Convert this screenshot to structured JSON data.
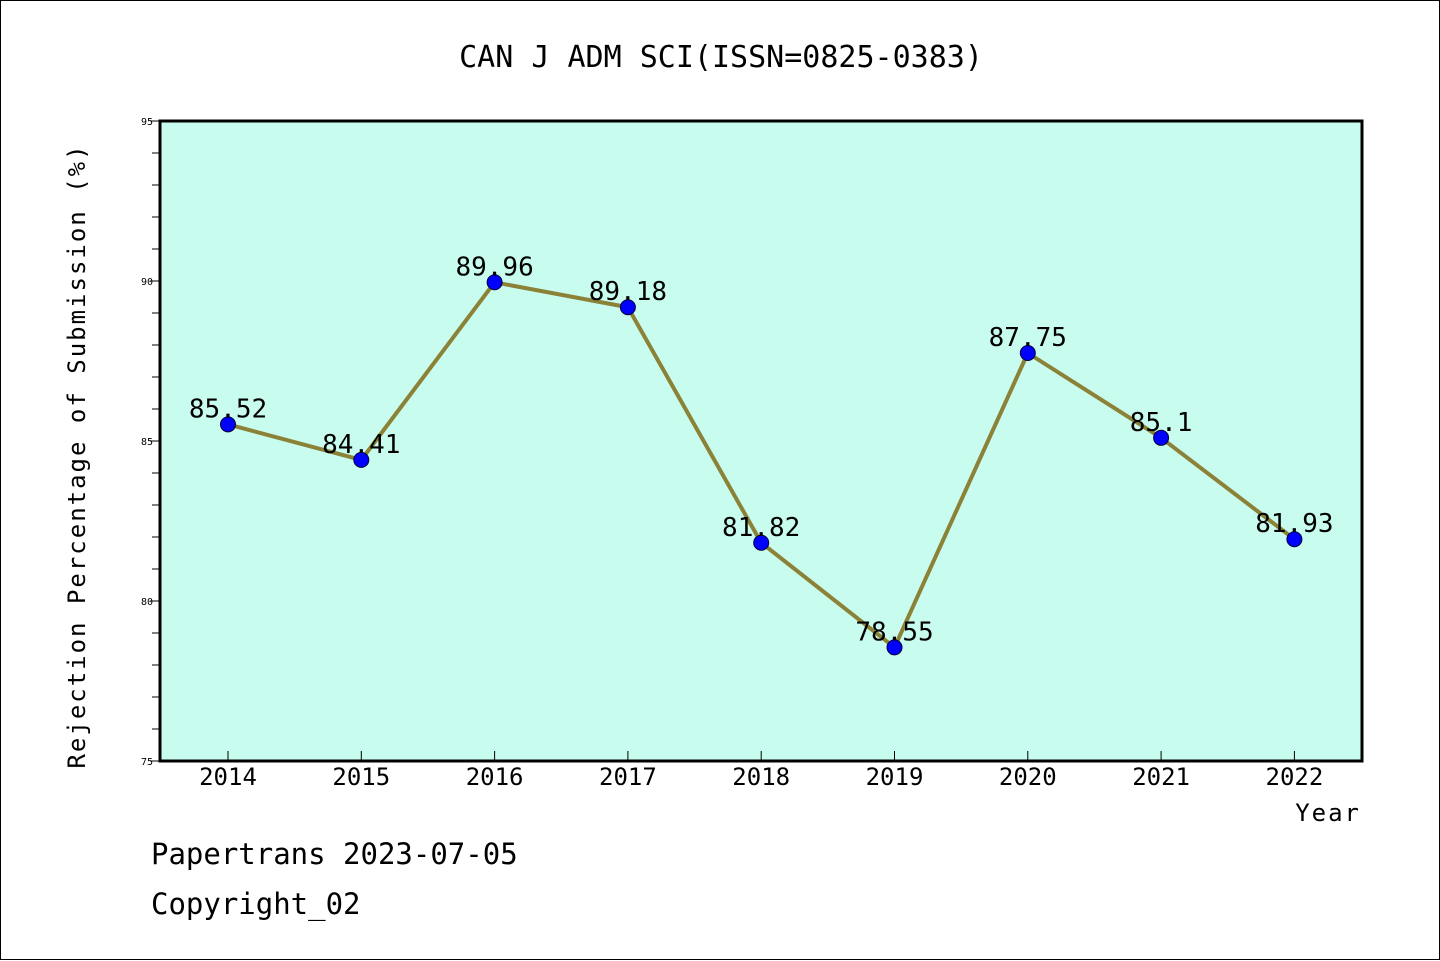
{
  "chart_data": {
    "type": "line",
    "title": "CAN J ADM SCI(ISSN=0825-0383)",
    "xlabel": "Year",
    "ylabel": "Rejection Percentage of Submission (%)",
    "x": [
      "2014",
      "2015",
      "2016",
      "2017",
      "2018",
      "2019",
      "2020",
      "2021",
      "2022"
    ],
    "values": [
      85.52,
      84.41,
      89.96,
      89.18,
      81.82,
      78.55,
      87.75,
      85.1,
      81.93
    ],
    "value_labels": [
      "85.52",
      "84.41",
      "89.96",
      "89.18",
      "81.82",
      "78.55",
      "87.75",
      "85.1",
      "81.93"
    ],
    "ylim": [
      75,
      95
    ],
    "yticks": [
      "75",
      "80",
      "85",
      "90",
      "95"
    ],
    "grid": false,
    "colors": {
      "plot_background": "#c8fcef",
      "line": "#8b8237",
      "marker": "#0000ff"
    }
  },
  "footer": {
    "line1": "Papertrans 2023-07-05",
    "line2": "Copyright_02"
  }
}
